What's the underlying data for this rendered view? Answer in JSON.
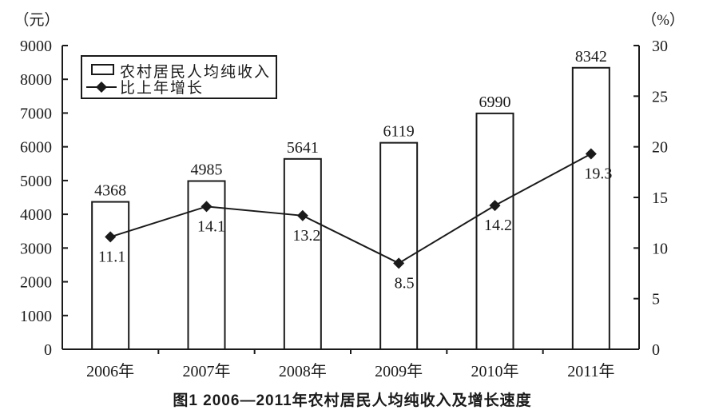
{
  "figure": {
    "caption": "图1  2006—2011年农村居民人均纯收入及增长速度"
  },
  "chart_data": {
    "type": "bar+line",
    "categories": [
      "2006年",
      "2007年",
      "2008年",
      "2009年",
      "2010年",
      "2011年"
    ],
    "series": [
      {
        "name": "农村居民人均纯收入",
        "type": "bar",
        "axis": "left",
        "unit": "元",
        "values": [
          4368,
          4985,
          5641,
          6119,
          6990,
          8342
        ]
      },
      {
        "name": "比上年增长",
        "type": "line",
        "marker": "diamond",
        "axis": "right",
        "unit": "%",
        "values": [
          11.1,
          14.1,
          13.2,
          8.5,
          14.2,
          19.3
        ]
      }
    ],
    "left_axis": {
      "label": "（元）",
      "min": 0,
      "max": 9000,
      "tick_step": 1000,
      "ticks": [
        0,
        1000,
        2000,
        3000,
        4000,
        5000,
        6000,
        7000,
        8000,
        9000
      ]
    },
    "right_axis": {
      "label": "（%）",
      "min": 0,
      "max": 30,
      "tick_step": 5,
      "ticks": [
        0,
        5,
        10,
        15,
        20,
        25,
        30
      ]
    },
    "legend": {
      "position": "top-left",
      "entries": [
        "农村居民人均纯收入",
        "比上年增长"
      ]
    },
    "grid": false,
    "title": "图1  2006—2011年农村居民人均纯收入及增长速度"
  },
  "colors": {
    "ink": "#1a1a1a",
    "background": "#ffffff",
    "bar_fill": "#ffffff"
  }
}
